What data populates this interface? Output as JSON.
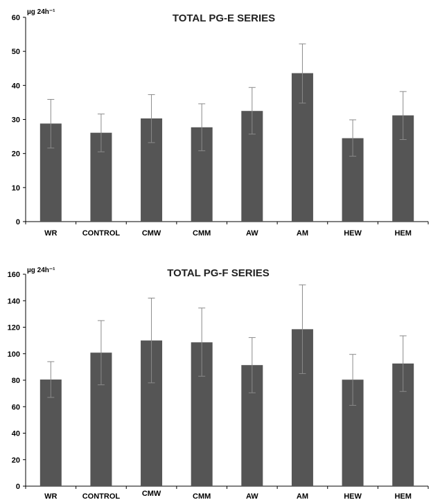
{
  "chart_data": [
    {
      "type": "bar",
      "title": "TOTAL PG-E SERIES",
      "unit_label": "µg 24h⁻¹",
      "categories": [
        "WR",
        "CONTROL",
        "CMW",
        "CMM",
        "AW",
        "AM",
        "HEW",
        "HEM"
      ],
      "values": [
        28.8,
        26.1,
        30.3,
        27.7,
        32.5,
        43.6,
        24.5,
        31.2
      ],
      "error_upper": [
        35.9,
        31.6,
        37.3,
        34.6,
        39.4,
        52.2,
        29.9,
        38.2
      ],
      "error_lower": [
        21.6,
        20.5,
        23.2,
        20.8,
        25.7,
        34.8,
        19.2,
        24.1
      ],
      "ylim": [
        0,
        60
      ],
      "yticks": [
        "0",
        "10",
        "20",
        "30",
        "40",
        "50",
        "60"
      ],
      "grid": false,
      "bar_color": "#555555"
    },
    {
      "type": "bar",
      "title": "TOTAL PG-F SERIES",
      "unit_label": "µg 24h⁻¹",
      "categories": [
        "WR",
        "CONTROL",
        "CMW",
        "CMM",
        "AW",
        "AM",
        "HEW",
        "HEM"
      ],
      "values": [
        80.5,
        100.8,
        110.0,
        108.6,
        91.4,
        118.5,
        80.4,
        92.6
      ],
      "error_upper": [
        94.0,
        125.0,
        142.0,
        134.5,
        112.2,
        152.0,
        99.5,
        113.5
      ],
      "error_lower": [
        67.0,
        76.5,
        78.0,
        83.0,
        70.5,
        85.0,
        61.0,
        71.5
      ],
      "ylim": [
        0,
        160
      ],
      "yticks": [
        "0",
        "20",
        "40",
        "60",
        "80",
        "100",
        "120",
        "140",
        "160"
      ],
      "grid": false,
      "bar_color": "#555555"
    }
  ]
}
